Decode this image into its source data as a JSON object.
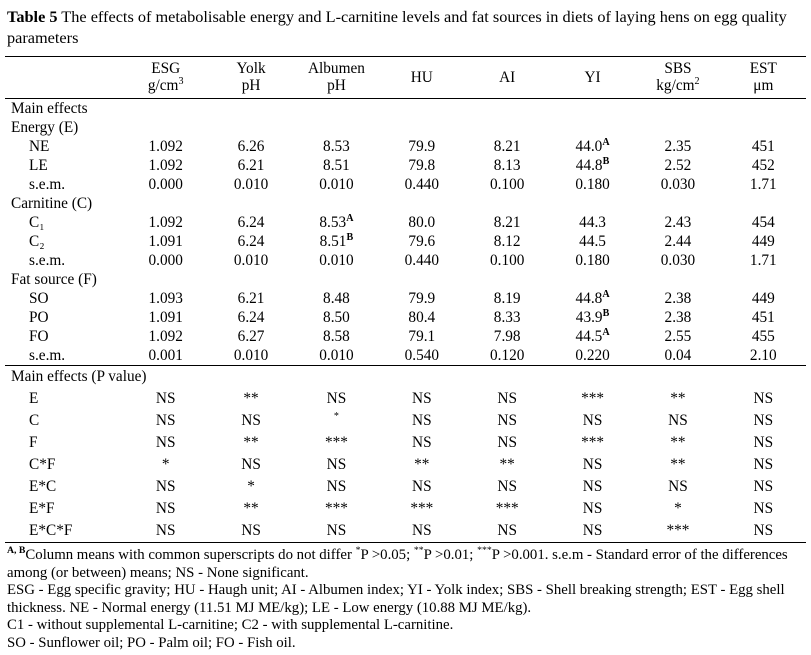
{
  "title": {
    "label": "Table 5",
    "text": " The effects of metabolisable energy and L-carnitine levels and fat sources in diets of laying hens on egg quality parameters"
  },
  "table": {
    "columns": [
      {
        "label": "ESG",
        "sub": "g/cm^{3}"
      },
      {
        "label": "Yolk",
        "sub": "pH"
      },
      {
        "label": "Albumen",
        "sub": "pH"
      },
      {
        "label": "HU",
        "sub": ""
      },
      {
        "label": "AI",
        "sub": ""
      },
      {
        "label": "YI",
        "sub": ""
      },
      {
        "label": "SBS",
        "sub": "kg/cm^{2}"
      },
      {
        "label": "EST",
        "sub": "μm"
      }
    ],
    "groups": [
      {
        "name": "main-effects-group",
        "rows": [
          {
            "type": "section",
            "label": "Main effects"
          },
          {
            "type": "section",
            "label": "Energy (E)"
          },
          {
            "type": "data",
            "label": "NE",
            "values": [
              "1.092",
              "6.26",
              "8.53",
              "79.9",
              "8.21",
              "44.0^{A}",
              "2.35",
              "451"
            ]
          },
          {
            "type": "data",
            "label": "LE",
            "values": [
              "1.092",
              "6.21",
              "8.51",
              "79.8",
              "8.13",
              "44.8^{B}",
              "2.52",
              "452"
            ]
          },
          {
            "type": "data",
            "label": "s.e.m.",
            "values": [
              "0.000",
              "0.010",
              "0.010",
              "0.440",
              "0.100",
              "0.180",
              "0.030",
              "1.71"
            ]
          },
          {
            "type": "section",
            "label": "Carnitine (C)"
          },
          {
            "type": "data",
            "label": "C₁",
            "values": [
              "1.092",
              "6.24",
              "8.53^{A}",
              "80.0",
              "8.21",
              "44.3",
              "2.43",
              "454"
            ]
          },
          {
            "type": "data",
            "label": "C₂",
            "values": [
              "1.091",
              "6.24",
              "8.51^{B}",
              "79.6",
              "8.12",
              "44.5",
              "2.44",
              "449"
            ]
          },
          {
            "type": "data",
            "label": "s.e.m.",
            "values": [
              "0.000",
              "0.010",
              "0.010",
              "0.440",
              "0.100",
              "0.180",
              "0.030",
              "1.71"
            ]
          },
          {
            "type": "section",
            "label": "Fat source (F)"
          },
          {
            "type": "data",
            "label": "SO",
            "values": [
              "1.093",
              "6.21",
              "8.48",
              "79.9",
              "8.19",
              "44.8^{A}",
              "2.38",
              "449"
            ]
          },
          {
            "type": "data",
            "label": "PO",
            "values": [
              "1.091",
              "6.24",
              "8.50",
              "80.4",
              "8.33",
              "43.9^{B}",
              "2.38",
              "451"
            ]
          },
          {
            "type": "data",
            "label": "FO",
            "values": [
              "1.092",
              "6.27",
              "8.58",
              "79.1",
              "7.98",
              "44.5^{A}",
              "2.55",
              "455"
            ]
          },
          {
            "type": "data",
            "label": "s.e.m.",
            "values": [
              "0.001",
              "0.010",
              "0.010",
              "0.540",
              "0.120",
              "0.220",
              "0.04",
              "2.10"
            ]
          }
        ]
      },
      {
        "name": "p-value-group",
        "rows": [
          {
            "type": "section",
            "label": "Main effects (P value)"
          },
          {
            "type": "data",
            "label": "E",
            "values": [
              "NS",
              "**",
              "NS",
              "NS",
              "NS",
              "***",
              "**",
              "NS"
            ]
          },
          {
            "type": "data",
            "label": "C",
            "values": [
              "NS",
              "NS",
              "^{*}",
              "NS",
              "NS",
              "NS",
              "NS",
              "NS"
            ]
          },
          {
            "type": "data",
            "label": "F",
            "values": [
              "NS",
              "**",
              "***",
              "NS",
              "NS",
              "***",
              "**",
              "NS"
            ]
          },
          {
            "type": "data",
            "label": "C*F",
            "values": [
              "*",
              "NS",
              "NS",
              "**",
              "**",
              "NS",
              "**",
              "NS"
            ]
          },
          {
            "type": "data",
            "label": "E*C",
            "values": [
              "NS",
              "*",
              "NS",
              "NS",
              "NS",
              "NS",
              "NS",
              "NS"
            ]
          },
          {
            "type": "data",
            "label": "E*F",
            "values": [
              "NS",
              "**",
              "***",
              "***",
              "***",
              "NS",
              "*",
              "NS"
            ]
          },
          {
            "type": "data",
            "label": "E*C*F",
            "values": [
              "NS",
              "NS",
              "NS",
              "NS",
              "NS",
              "NS",
              "***",
              "NS"
            ]
          }
        ]
      }
    ]
  },
  "footnotes": [
    "^{A, B}Column means with common superscripts do not differ ^{*}P >0.05; ^{**}P >0.01; ^{***}P >0.001. s.e.m - Standard error of the differences among (or between) means; NS - None significant.",
    "ESG - Egg specific gravity; HU - Haugh unit; AI - Albumen index; YI - Yolk index; SBS - Shell breaking strength; EST - Egg shell thickness.  NE - Normal energy (11.51 MJ ME/kg); LE - Low energy  (10.88 MJ ME/kg).",
    "C1 - without supplemental L-carnitine; C2 - with supplemental L-carnitine.",
    "SO - Sunflower oil; PO - Palm oil; FO - Fish oil."
  ]
}
